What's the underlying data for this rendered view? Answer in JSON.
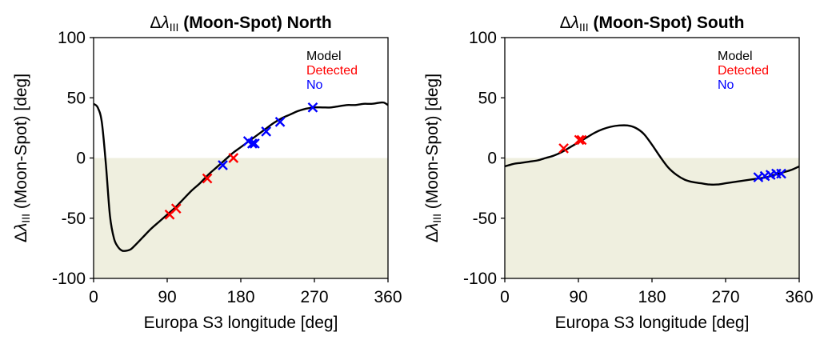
{
  "chart_data": [
    {
      "type": "line",
      "title_parts": {
        "delta": "Δ",
        "lambda": "λ",
        "sub": "III",
        "rest": " (Moon-Spot) North"
      },
      "xlabel": "Europa S3 longitude [deg]",
      "ylabel_parts": {
        "delta": "Δ",
        "lambda": "λ",
        "sub": "III",
        "rest": " (Moon-Spot) [deg]"
      },
      "xlim": [
        0,
        360
      ],
      "ylim": [
        -100,
        100
      ],
      "xticks": [
        0,
        90,
        180,
        270,
        360
      ],
      "yticks": [
        100,
        50,
        0,
        -50,
        -100
      ],
      "shaded_region": {
        "y_from": -100,
        "y_to": 0,
        "color": "#efefdf"
      },
      "legend": {
        "placement": "top-right",
        "entries": [
          {
            "label": "Model",
            "color": "#000000"
          },
          {
            "label": "Detected",
            "color": "#ff0000"
          },
          {
            "label": "No",
            "color": "#0000ff"
          }
        ]
      },
      "series": [
        {
          "name": "Model",
          "color": "#000000",
          "x": [
            0,
            5,
            10,
            15,
            20,
            25,
            30,
            35,
            40,
            45,
            50,
            60,
            70,
            80,
            90,
            100,
            110,
            120,
            130,
            140,
            150,
            160,
            170,
            180,
            190,
            200,
            210,
            220,
            230,
            240,
            250,
            260,
            270,
            280,
            290,
            300,
            310,
            320,
            330,
            340,
            350,
            355,
            360
          ],
          "y": [
            45,
            42,
            30,
            -5,
            -48,
            -67,
            -74,
            -77,
            -77,
            -76,
            -73,
            -66,
            -59,
            -53,
            -47,
            -41,
            -34,
            -27,
            -21,
            -14,
            -8,
            -2,
            4,
            9,
            14,
            19,
            24,
            29,
            33,
            36,
            39,
            41,
            42,
            42,
            42,
            43,
            44,
            44,
            45,
            45,
            46,
            46,
            44
          ]
        },
        {
          "name": "Detected",
          "color": "#ff0000",
          "marker": "x",
          "x": [
            93,
            101,
            139,
            171
          ],
          "y": [
            -47,
            -42,
            -17,
            0
          ]
        },
        {
          "name": "No",
          "color": "#0000ff",
          "marker": "x",
          "x": [
            158,
            189,
            194,
            197,
            211,
            228,
            268
          ],
          "y": [
            -6,
            14,
            12,
            12,
            22,
            30,
            42
          ]
        }
      ]
    },
    {
      "type": "line",
      "title_parts": {
        "delta": "Δ",
        "lambda": "λ",
        "sub": "III",
        "rest": " (Moon-Spot) South"
      },
      "xlabel": "Europa S3 longitude [deg]",
      "ylabel_parts": {
        "delta": "Δ",
        "lambda": "λ",
        "sub": "III",
        "rest": " (Moon-Spot) [deg]"
      },
      "xlim": [
        0,
        360
      ],
      "ylim": [
        -100,
        100
      ],
      "xticks": [
        0,
        90,
        180,
        270,
        360
      ],
      "yticks": [
        100,
        50,
        0,
        -50,
        -100
      ],
      "shaded_region": {
        "y_from": -100,
        "y_to": 0,
        "color": "#efefdf"
      },
      "legend": {
        "placement": "top-right",
        "entries": [
          {
            "label": "Model",
            "color": "#000000"
          },
          {
            "label": "Detected",
            "color": "#ff0000"
          },
          {
            "label": "No",
            "color": "#0000ff"
          }
        ]
      },
      "series": [
        {
          "name": "Model",
          "color": "#000000",
          "x": [
            0,
            10,
            20,
            30,
            40,
            50,
            60,
            70,
            80,
            90,
            100,
            110,
            120,
            130,
            140,
            150,
            160,
            170,
            180,
            190,
            200,
            210,
            220,
            230,
            240,
            250,
            260,
            270,
            280,
            290,
            300,
            310,
            320,
            330,
            340,
            350,
            360
          ],
          "y": [
            -7,
            -5,
            -4,
            -3,
            -2,
            0,
            2,
            5,
            9,
            13,
            17,
            21,
            24,
            26,
            27,
            27,
            25,
            20,
            11,
            1,
            -8,
            -14,
            -18,
            -20,
            -21,
            -22,
            -22,
            -21,
            -20,
            -19,
            -18,
            -17,
            -16,
            -14,
            -12,
            -10,
            -7
          ]
        },
        {
          "name": "Detected",
          "color": "#ff0000",
          "marker": "x",
          "x": [
            72,
            91,
            94
          ],
          "y": [
            8,
            15,
            15
          ]
        },
        {
          "name": "No",
          "color": "#0000ff",
          "marker": "x",
          "x": [
            310,
            318,
            325,
            332,
            338
          ],
          "y": [
            -16,
            -15,
            -14,
            -13,
            -13
          ]
        }
      ]
    }
  ]
}
